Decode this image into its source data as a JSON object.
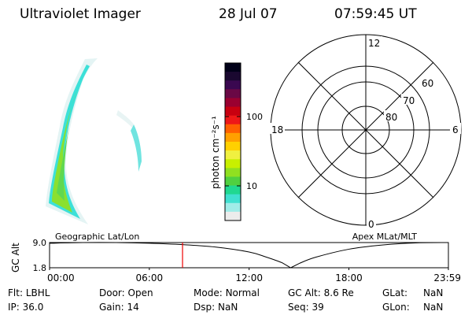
{
  "header": {
    "instrument": "Ultraviolet Imager",
    "date": "28 Jul 07",
    "time": "07:59:45 UT"
  },
  "colorbar": {
    "label": "photon cm⁻²s⁻¹",
    "ticks": [
      "100",
      "10"
    ],
    "colors": [
      "#000018",
      "#1a0830",
      "#3a0850",
      "#6a0845",
      "#9a0030",
      "#c80010",
      "#ee1818",
      "#ff6000",
      "#ffa000",
      "#ffd000",
      "#f0f040",
      "#c8f000",
      "#90e020",
      "#50d040",
      "#20d890",
      "#40e0d0",
      "#a0ece8",
      "#ececec"
    ]
  },
  "polar_grid": {
    "mlt_labels": {
      "top": "12",
      "left": "18",
      "right": "6",
      "bottom": "0"
    },
    "lat_labels": [
      "60",
      "70",
      "80"
    ]
  },
  "timeline": {
    "left_label": "Geographic Lat/Lon",
    "right_label": "Apex MLat/MLT",
    "y_axis_title": "GC Alt",
    "y_ticks": [
      "9.0",
      "1.8"
    ],
    "x_ticks": [
      "00:00",
      "06:00",
      "12:00",
      "18:00",
      "23:59"
    ],
    "marker_color": "#ee0000"
  },
  "status": {
    "flt": {
      "label": "Flt:",
      "value": "LBHL"
    },
    "ip": {
      "label": "IP:",
      "value": "36.0"
    },
    "door": {
      "label": "Door:",
      "value": "Open"
    },
    "gain": {
      "label": "Gain:",
      "value": "14"
    },
    "mode": {
      "label": "Mode:",
      "value": "Normal"
    },
    "dsp": {
      "label": "Dsp:",
      "value": "NaN"
    },
    "gcalt": {
      "label": "GC Alt:",
      "value": "8.6 Re"
    },
    "seq": {
      "label": "Seq:",
      "value": "39"
    },
    "glat": {
      "label": "GLat:",
      "value": "NaN"
    },
    "glon": {
      "label": "GLon:",
      "value": "NaN"
    }
  },
  "chart_data": {
    "type": "line",
    "title": "",
    "xlabel": "",
    "ylabel": "GC Alt",
    "x": [
      "00:00",
      "02:00",
      "04:00",
      "06:00",
      "08:00",
      "10:00",
      "12:00",
      "13:00",
      "14:00",
      "14:30",
      "15:00",
      "16:00",
      "18:00",
      "20:00",
      "22:00",
      "23:59"
    ],
    "series": [
      {
        "values": [
          8.8,
          9.0,
          9.0,
          8.8,
          8.4,
          7.7,
          6.3,
          4.9,
          3.2,
          1.8,
          3.0,
          4.8,
          7.1,
          8.3,
          8.9,
          9.0
        ]
      }
    ],
    "ylim": [
      1.8,
      9.0
    ],
    "current_time": "07:59:45"
  }
}
